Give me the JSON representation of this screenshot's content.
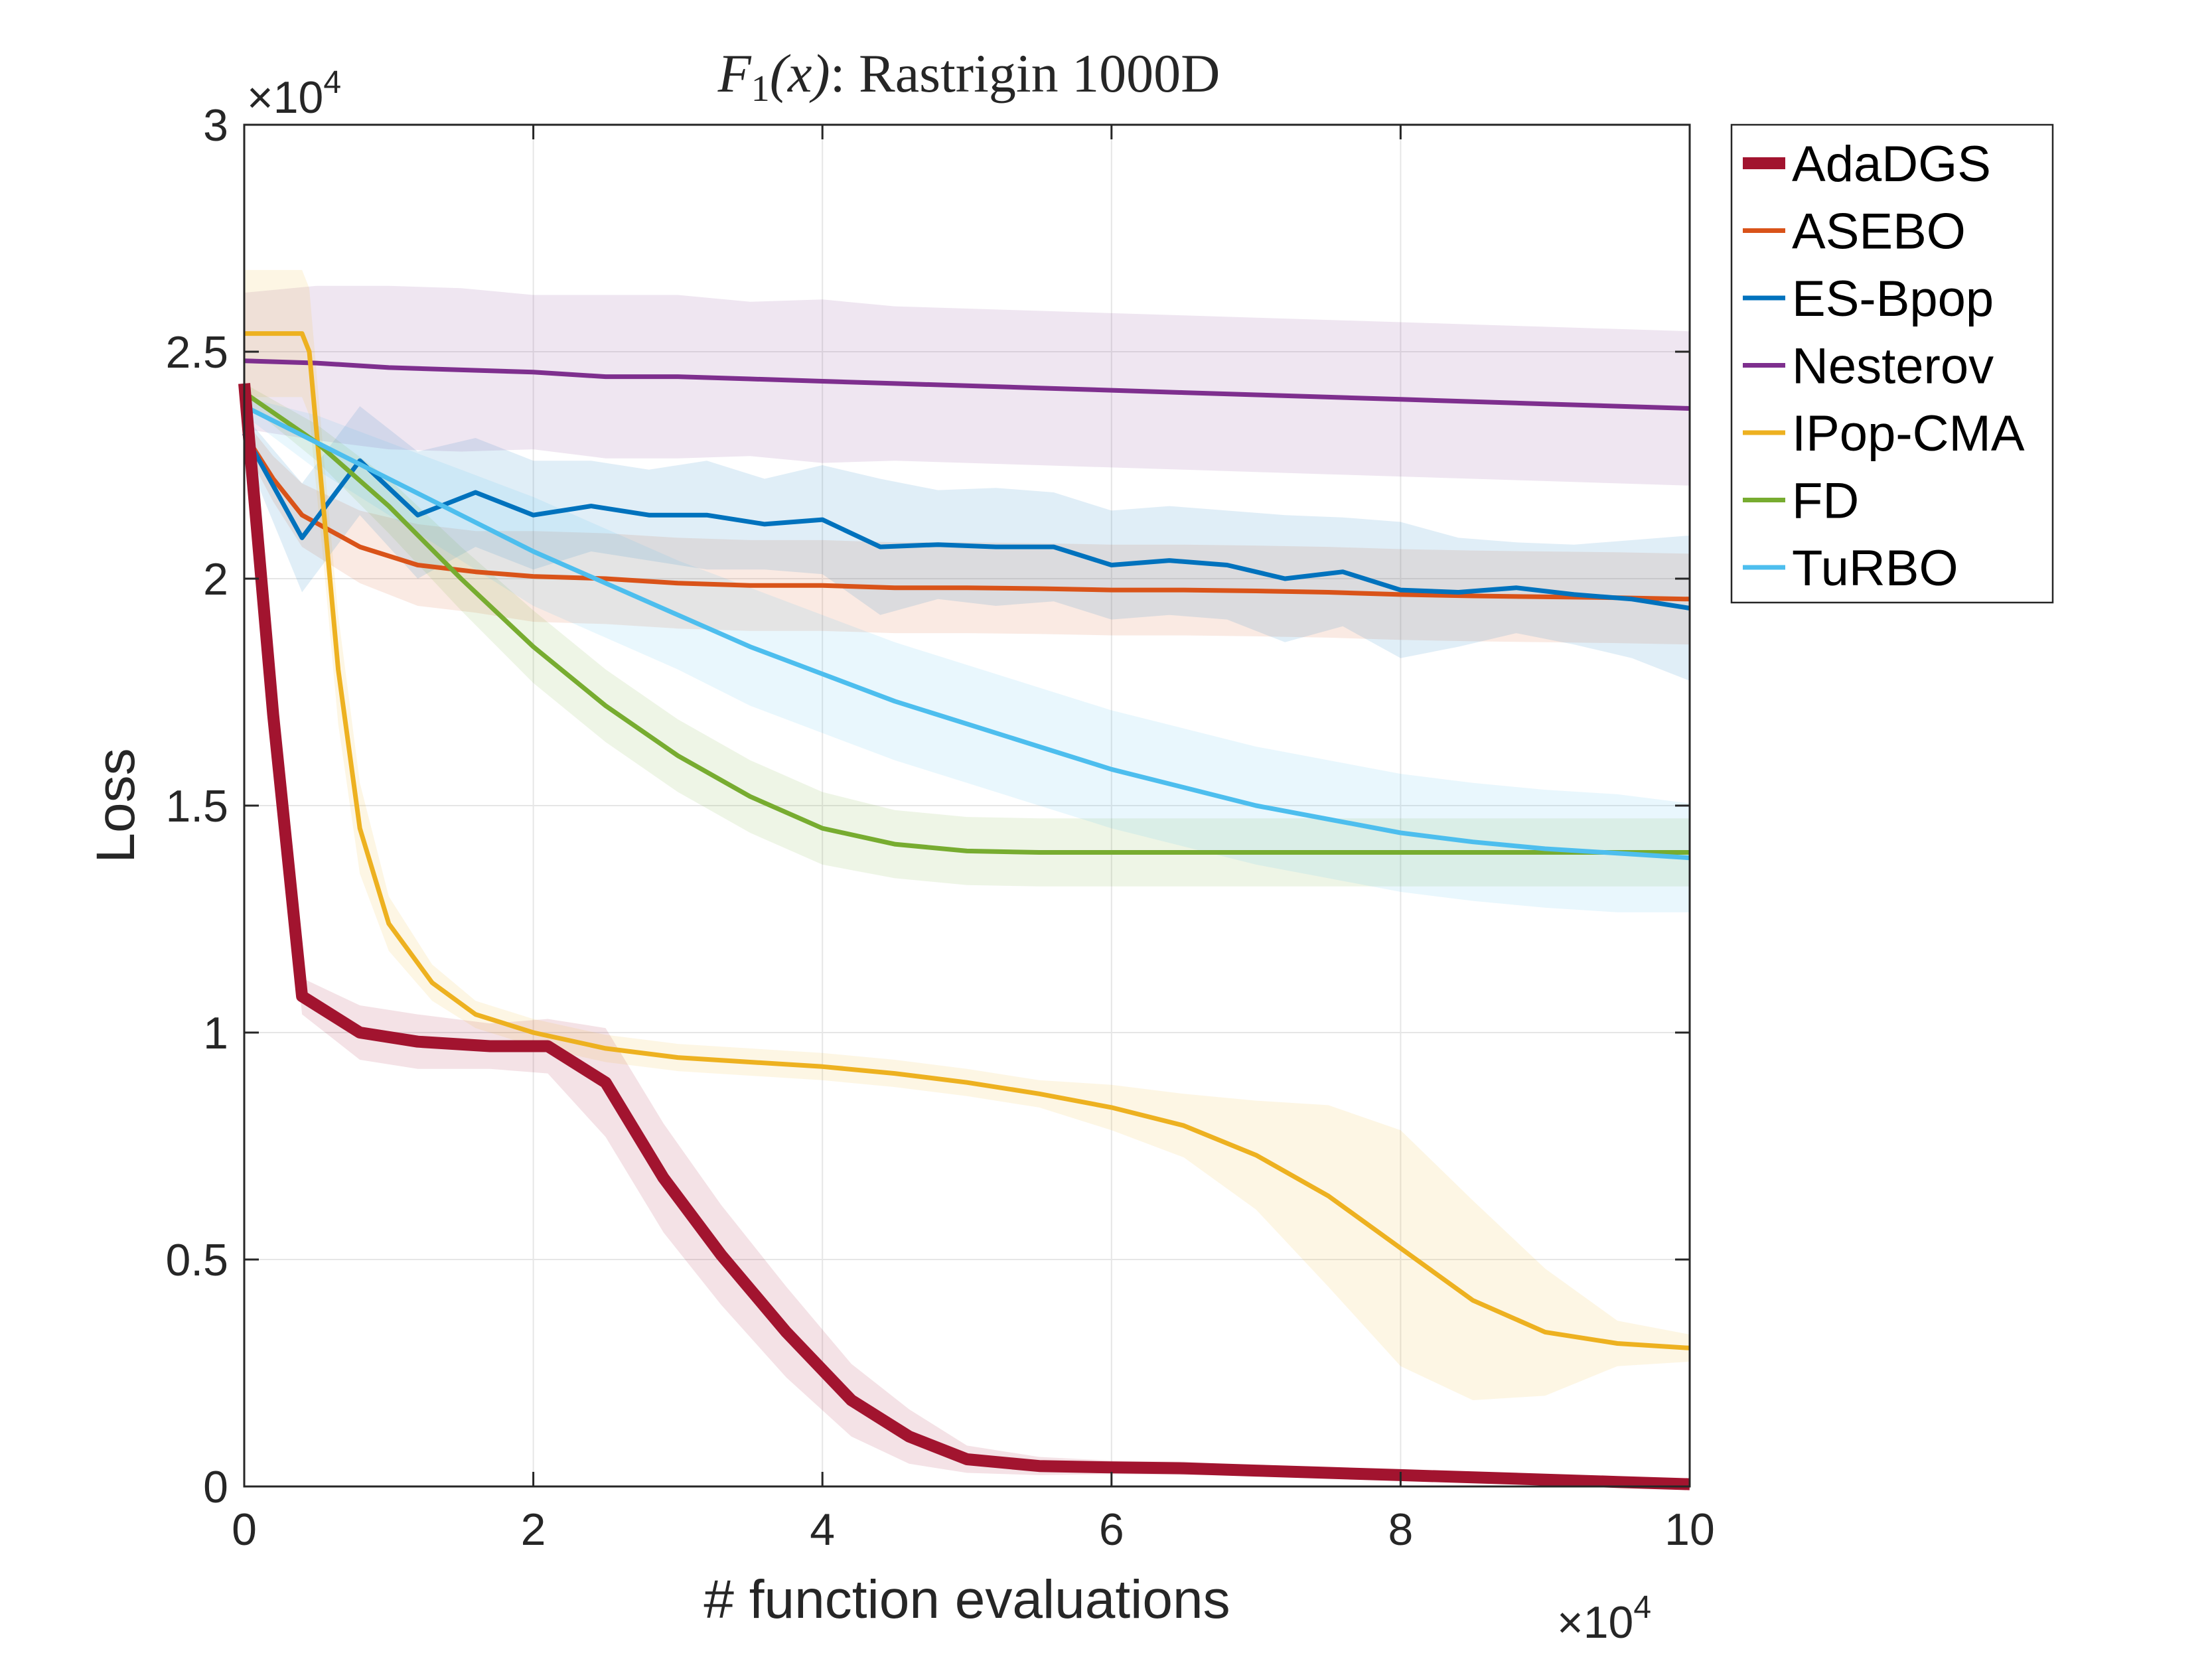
{
  "chart_data": {
    "type": "line",
    "title": {
      "function_symbol": "F",
      "function_subscript": "1",
      "function_argument": "(x)",
      "suffix": ": Rastrigin 1000D"
    },
    "xlabel": "# function evaluations",
    "ylabel": "Loss",
    "x_exponent_label": {
      "base": "×10",
      "power": "4"
    },
    "y_exponent_label": {
      "base": "×10",
      "power": "4"
    },
    "xlim": [
      0,
      10
    ],
    "ylim": [
      0,
      3
    ],
    "x_ticks": [
      "0",
      "2",
      "4",
      "6",
      "8",
      "10"
    ],
    "y_ticks": [
      "0",
      "0.5",
      "1",
      "1.5",
      "2",
      "2.5",
      "3"
    ],
    "grid": true,
    "legend_position": "outside-right-top",
    "series": [
      {
        "name": "AdaDGS",
        "color": "#A2142F",
        "x": [
          0,
          0.2,
          0.4,
          0.8,
          1.2,
          1.7,
          2.1,
          2.5,
          2.9,
          3.3,
          3.75,
          4.2,
          4.6,
          5.0,
          5.5,
          6.0,
          6.5,
          7.0,
          7.5,
          8.0,
          8.5,
          9.0,
          9.5,
          10.0
        ],
        "y": [
          2.43,
          1.7,
          1.08,
          1.0,
          0.98,
          0.97,
          0.97,
          0.89,
          0.68,
          0.51,
          0.34,
          0.19,
          0.11,
          0.06,
          0.045,
          0.042,
          0.04,
          0.035,
          0.03,
          0.025,
          0.02,
          0.015,
          0.01,
          0.005
        ],
        "band": [
          0.02,
          0.02,
          0.04,
          0.06,
          0.06,
          0.05,
          0.06,
          0.12,
          0.12,
          0.11,
          0.1,
          0.08,
          0.06,
          0.03,
          0.02,
          0.015,
          0.015,
          0.01,
          0.01,
          0.01,
          0.01,
          0.005,
          0.005,
          0.005
        ]
      },
      {
        "name": "ASEBO",
        "color": "#D95319",
        "x": [
          0,
          0.2,
          0.4,
          0.8,
          1.2,
          1.6,
          2.0,
          2.5,
          3.0,
          3.5,
          4.0,
          4.5,
          5.0,
          5.5,
          6.0,
          6.5,
          7.0,
          7.5,
          8.0,
          8.5,
          9.0,
          9.5,
          10.0
        ],
        "y": [
          2.32,
          2.22,
          2.14,
          2.07,
          2.03,
          2.015,
          2.005,
          2.0,
          1.99,
          1.985,
          1.985,
          1.98,
          1.98,
          1.978,
          1.975,
          1.975,
          1.973,
          1.97,
          1.965,
          1.962,
          1.96,
          1.958,
          1.955
        ],
        "band": [
          0.03,
          0.05,
          0.07,
          0.08,
          0.09,
          0.09,
          0.1,
          0.1,
          0.1,
          0.1,
          0.1,
          0.1,
          0.1,
          0.1,
          0.1,
          0.1,
          0.1,
          0.1,
          0.1,
          0.1,
          0.1,
          0.1,
          0.1
        ]
      },
      {
        "name": "ES-Bpop",
        "color": "#0072BD",
        "x": [
          0,
          0.4,
          0.8,
          1.2,
          1.6,
          2.0,
          2.4,
          2.8,
          3.2,
          3.6,
          4.0,
          4.4,
          4.8,
          5.2,
          5.6,
          6.0,
          6.4,
          6.8,
          7.2,
          7.6,
          8.0,
          8.4,
          8.8,
          9.2,
          9.6,
          10.0
        ],
        "y": [
          2.32,
          2.09,
          2.26,
          2.14,
          2.19,
          2.14,
          2.16,
          2.14,
          2.14,
          2.12,
          2.13,
          2.07,
          2.075,
          2.07,
          2.07,
          2.03,
          2.04,
          2.03,
          2.0,
          2.015,
          1.975,
          1.97,
          1.98,
          1.965,
          1.955,
          1.935
        ],
        "band": [
          0.04,
          0.12,
          0.12,
          0.14,
          0.12,
          0.12,
          0.1,
          0.1,
          0.12,
          0.1,
          0.12,
          0.15,
          0.12,
          0.13,
          0.12,
          0.12,
          0.12,
          0.12,
          0.14,
          0.12,
          0.15,
          0.12,
          0.1,
          0.11,
          0.13,
          0.16
        ]
      },
      {
        "name": "Nesterov",
        "color": "#7E2F8E",
        "x": [
          0,
          0.5,
          1.0,
          1.5,
          2.0,
          2.5,
          3.0,
          3.5,
          4.0,
          4.5,
          5.0,
          5.5,
          6.0,
          6.5,
          7.0,
          7.5,
          8.0,
          8.5,
          9.0,
          9.5,
          10.0
        ],
        "y": [
          2.48,
          2.475,
          2.465,
          2.46,
          2.455,
          2.445,
          2.445,
          2.44,
          2.435,
          2.43,
          2.425,
          2.42,
          2.415,
          2.41,
          2.405,
          2.4,
          2.395,
          2.39,
          2.385,
          2.38,
          2.375
        ],
        "band": [
          0.15,
          0.17,
          0.18,
          0.18,
          0.17,
          0.18,
          0.18,
          0.17,
          0.18,
          0.17,
          0.17,
          0.17,
          0.17,
          0.17,
          0.17,
          0.17,
          0.17,
          0.17,
          0.17,
          0.17,
          0.17
        ]
      },
      {
        "name": "IPop-CMA",
        "color": "#EDB120",
        "x": [
          0,
          0.4,
          0.45,
          0.55,
          0.65,
          0.8,
          1.0,
          1.3,
          1.6,
          2.0,
          2.5,
          3.0,
          3.5,
          4.0,
          4.5,
          5.0,
          5.5,
          6.0,
          6.5,
          7.0,
          7.5,
          8.0,
          8.5,
          9.0,
          9.5,
          10.0
        ],
        "y": [
          2.54,
          2.54,
          2.5,
          2.15,
          1.8,
          1.45,
          1.24,
          1.11,
          1.04,
          1.0,
          0.965,
          0.945,
          0.935,
          0.925,
          0.91,
          0.89,
          0.865,
          0.835,
          0.795,
          0.73,
          0.64,
          0.525,
          0.41,
          0.34,
          0.315,
          0.305
        ],
        "band": [
          0.14,
          0.14,
          0.14,
          0.12,
          0.12,
          0.1,
          0.06,
          0.04,
          0.03,
          0.03,
          0.03,
          0.03,
          0.03,
          0.03,
          0.03,
          0.03,
          0.03,
          0.05,
          0.07,
          0.12,
          0.2,
          0.26,
          0.22,
          0.14,
          0.05,
          0.03
        ]
      },
      {
        "name": "FD",
        "color": "#77AC30",
        "x": [
          0,
          0.5,
          1.0,
          1.5,
          2.0,
          2.5,
          3.0,
          3.5,
          4.0,
          4.5,
          5.0,
          5.5,
          6.0,
          7.0,
          8.0,
          9.0,
          10.0
        ],
        "y": [
          2.41,
          2.3,
          2.16,
          2.0,
          1.85,
          1.72,
          1.61,
          1.52,
          1.45,
          1.415,
          1.4,
          1.397,
          1.397,
          1.397,
          1.397,
          1.397,
          1.397
        ],
        "band": [
          0.02,
          0.04,
          0.06,
          0.07,
          0.08,
          0.08,
          0.08,
          0.08,
          0.08,
          0.075,
          0.075,
          0.075,
          0.075,
          0.075,
          0.075,
          0.075,
          0.075
        ]
      },
      {
        "name": "TuRBO",
        "color": "#4DBEEE",
        "x": [
          0,
          0.5,
          1.0,
          1.5,
          2.0,
          2.5,
          3.0,
          3.5,
          4.0,
          4.5,
          5.0,
          5.5,
          6.0,
          6.5,
          7.0,
          7.5,
          8.0,
          8.5,
          9.0,
          9.5,
          10.0
        ],
        "y": [
          2.38,
          2.3,
          2.22,
          2.14,
          2.06,
          1.99,
          1.92,
          1.85,
          1.79,
          1.73,
          1.68,
          1.63,
          1.58,
          1.54,
          1.5,
          1.47,
          1.44,
          1.42,
          1.405,
          1.395,
          1.385
        ],
        "band": [
          0.02,
          0.06,
          0.08,
          0.1,
          0.12,
          0.12,
          0.12,
          0.13,
          0.13,
          0.13,
          0.13,
          0.13,
          0.13,
          0.13,
          0.13,
          0.13,
          0.13,
          0.13,
          0.13,
          0.13,
          0.12
        ]
      }
    ]
  }
}
